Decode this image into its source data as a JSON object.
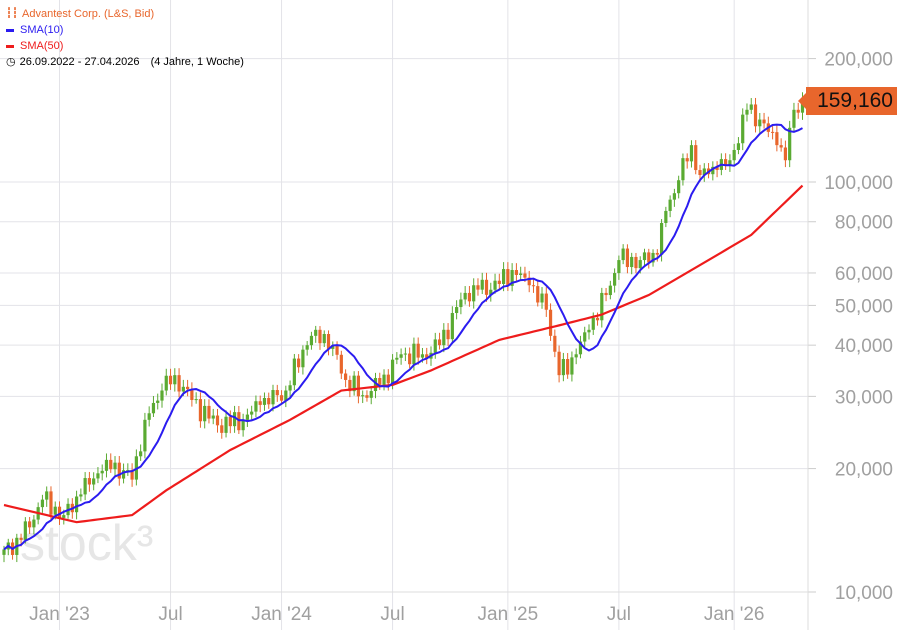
{
  "legend": {
    "instrument": "Advantest Corp. (L&S, Bid)",
    "sma10": "SMA(10)",
    "sma50": "SMA(50)",
    "range": "26.09.2022 - 27.04.2026",
    "duration": "(4 Jahre, 1 Woche)"
  },
  "watermark": "stock³",
  "last_price": "159,160",
  "colors": {
    "up": "#5aaa32",
    "down": "#e8662c",
    "sma10": "#2b1cf0",
    "sma50": "#ee1c1c",
    "grid": "#e3e3e8",
    "axis_text": "#a0a0a0"
  },
  "chart_data": {
    "type": "candlestick",
    "y_scale": "log",
    "ylim": [
      10000,
      220000
    ],
    "y_ticks": [
      {
        "value": 200000,
        "label": "200,000"
      },
      {
        "value": 100000,
        "label": "100,000"
      },
      {
        "value": 80000,
        "label": "80,000"
      },
      {
        "value": 60000,
        "label": "60,000"
      },
      {
        "value": 50000,
        "label": "50,000"
      },
      {
        "value": 40000,
        "label": "40,000"
      },
      {
        "value": 30000,
        "label": "30,000"
      },
      {
        "value": 20000,
        "label": "20,000"
      },
      {
        "value": 10000,
        "label": "10,000"
      }
    ],
    "x_ticks": [
      {
        "week": 13,
        "label": "Jan '23"
      },
      {
        "week": 39,
        "label": "Jul"
      },
      {
        "week": 65,
        "label": "Jan '24"
      },
      {
        "week": 91,
        "label": "Jul"
      },
      {
        "week": 118,
        "label": "Jan '25"
      },
      {
        "week": 144,
        "label": "Jul"
      },
      {
        "week": 171,
        "label": "Jan '26"
      }
    ],
    "weeks": 188,
    "close_anchors": [
      [
        0,
        12700
      ],
      [
        4,
        13400
      ],
      [
        9,
        16800
      ],
      [
        14,
        15400
      ],
      [
        18,
        17300
      ],
      [
        24,
        21000
      ],
      [
        30,
        18800
      ],
      [
        33,
        26300
      ],
      [
        37,
        31000
      ],
      [
        40,
        33800
      ],
      [
        44,
        29400
      ],
      [
        50,
        25500
      ],
      [
        56,
        26300
      ],
      [
        60,
        28600
      ],
      [
        66,
        31000
      ],
      [
        70,
        39000
      ],
      [
        73,
        43600
      ],
      [
        77,
        40000
      ],
      [
        80,
        32900
      ],
      [
        84,
        30200
      ],
      [
        88,
        32000
      ],
      [
        93,
        38000
      ],
      [
        98,
        38000
      ],
      [
        102,
        40000
      ],
      [
        107,
        51700
      ],
      [
        110,
        56000
      ],
      [
        114,
        54600
      ],
      [
        119,
        61000
      ],
      [
        123,
        56000
      ],
      [
        127,
        48800
      ],
      [
        130,
        33800
      ],
      [
        134,
        38000
      ],
      [
        137,
        43600
      ],
      [
        141,
        53000
      ],
      [
        144,
        64500
      ],
      [
        149,
        64500
      ],
      [
        153,
        66500
      ],
      [
        155,
        85000
      ],
      [
        158,
        101000
      ],
      [
        161,
        123000
      ],
      [
        163,
        104000
      ],
      [
        167,
        107000
      ],
      [
        170,
        113000
      ],
      [
        174,
        150000
      ],
      [
        177,
        142000
      ],
      [
        181,
        123000
      ],
      [
        183,
        113000
      ],
      [
        185,
        150000
      ],
      [
        187,
        159160
      ]
    ],
    "sma50_anchors": [
      [
        0,
        16300
      ],
      [
        17,
        14800
      ],
      [
        30,
        15400
      ],
      [
        38,
        17700
      ],
      [
        53,
        22200
      ],
      [
        67,
        26300
      ],
      [
        79,
        31000
      ],
      [
        91,
        32000
      ],
      [
        100,
        34700
      ],
      [
        116,
        41200
      ],
      [
        130,
        44700
      ],
      [
        140,
        47500
      ],
      [
        151,
        53000
      ],
      [
        165,
        64500
      ],
      [
        175,
        74300
      ],
      [
        187,
        98000
      ]
    ],
    "series": [
      {
        "name": "Advantest Corp. (L&S, Bid)"
      },
      {
        "name": "SMA(10)"
      },
      {
        "name": "SMA(50)"
      }
    ]
  }
}
